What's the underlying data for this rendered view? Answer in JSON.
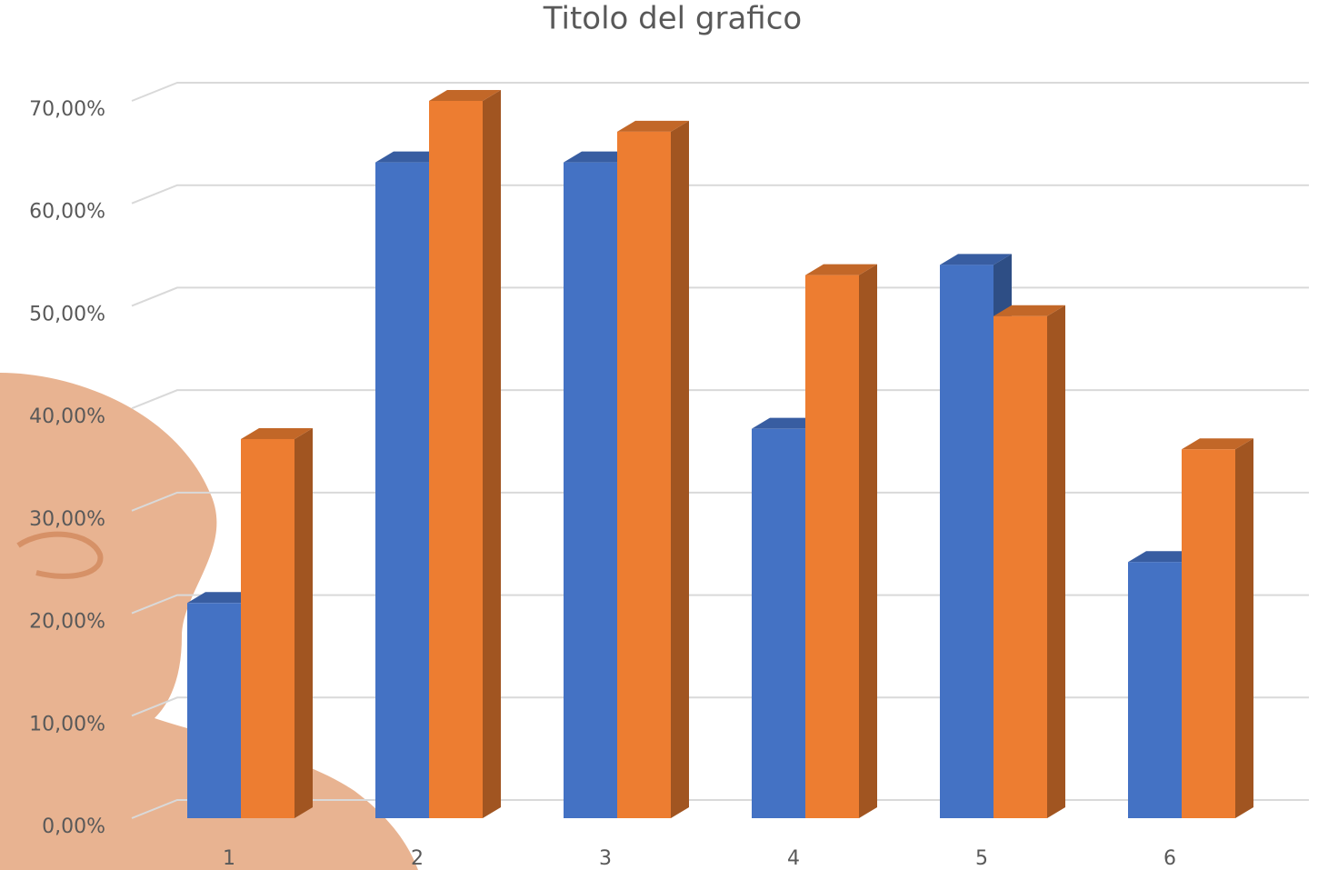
{
  "chart_data": {
    "type": "bar3d",
    "title": "Titolo del grafico",
    "categories": [
      "1",
      "2",
      "3",
      "4",
      "5",
      "6"
    ],
    "series": [
      {
        "color": "#4472c4",
        "values": [
          21,
          64,
          64,
          38,
          54,
          25
        ]
      },
      {
        "color": "#ed7d31",
        "values": [
          37,
          70,
          67,
          53,
          49,
          36
        ]
      }
    ],
    "ylim": [
      0,
      70
    ],
    "yticks": [
      {
        "value": 0,
        "label": "0,00%"
      },
      {
        "value": 10,
        "label": "10,00%"
      },
      {
        "value": 20,
        "label": "20,00%"
      },
      {
        "value": 30,
        "label": "30,00%"
      },
      {
        "value": 40,
        "label": "40,00%"
      },
      {
        "value": 50,
        "label": "50,00%"
      },
      {
        "value": 60,
        "label": "60,00%"
      },
      {
        "value": 70,
        "label": "70,00%"
      }
    ],
    "grid": true
  }
}
